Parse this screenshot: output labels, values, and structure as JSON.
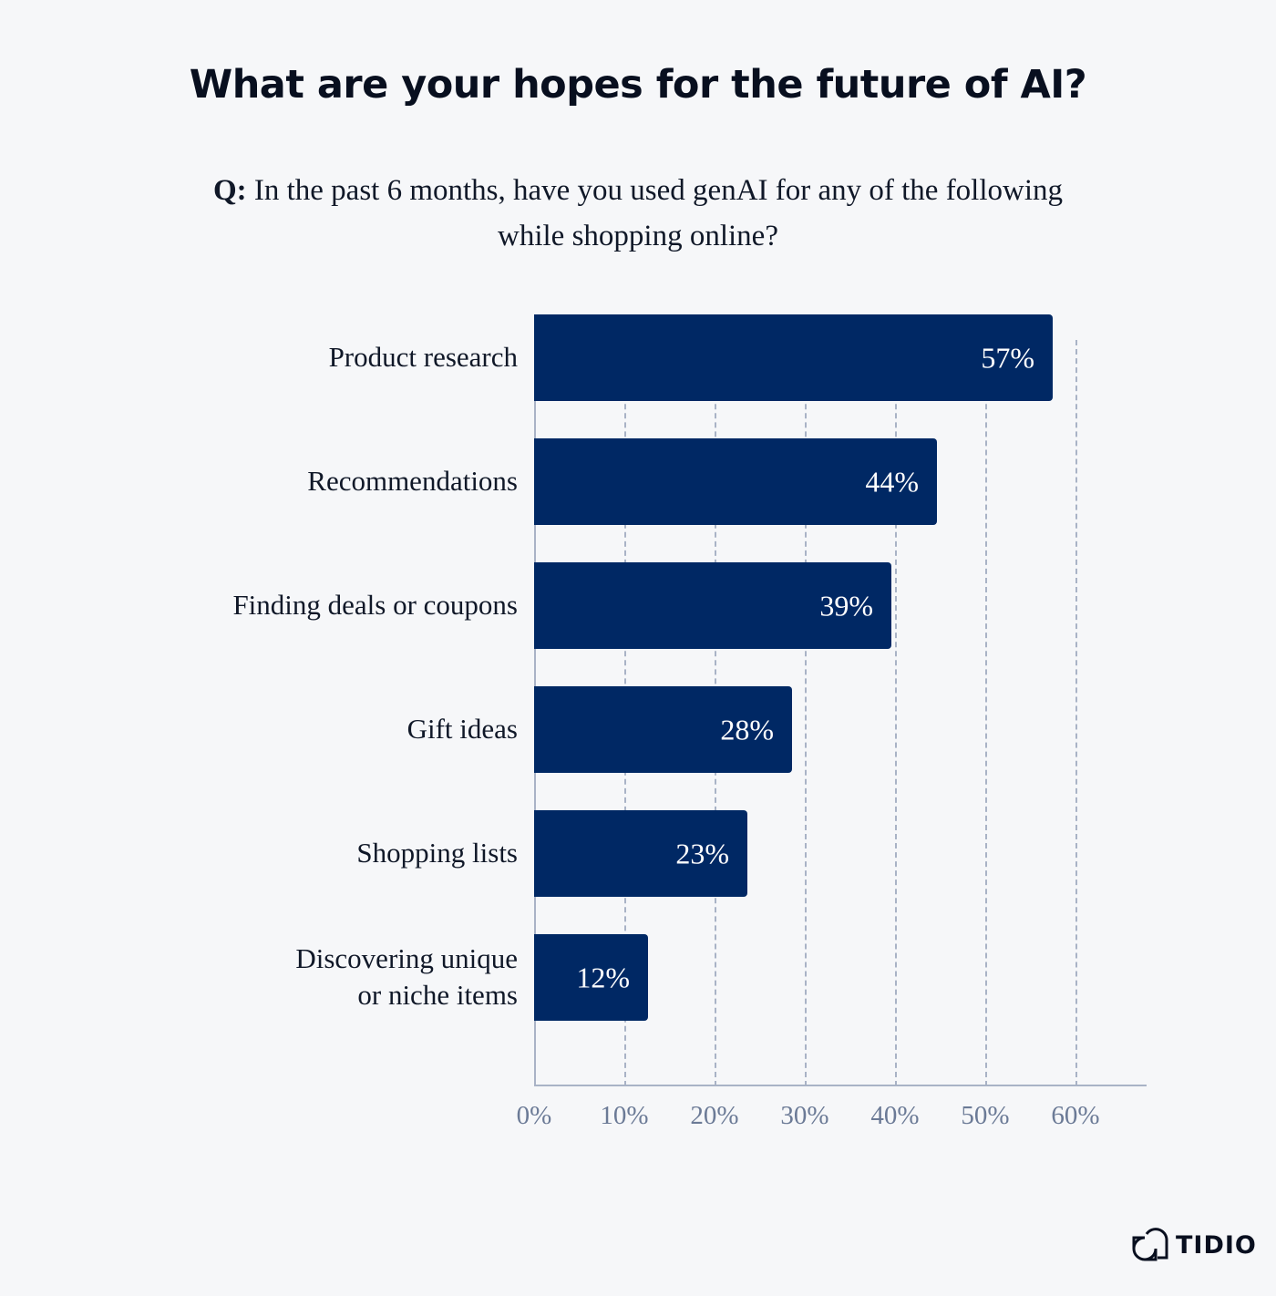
{
  "header": {
    "title": "What are your hopes for the future of AI?",
    "question_prefix": "Q:",
    "question_text": " In the past 6 months, have you used genAI for any of the following while shopping online?"
  },
  "brand": {
    "name": "TIDIO",
    "icon": "tidio-logo-icon"
  },
  "colors": {
    "bar": "#002864",
    "background": "#f6f7f9",
    "axis": "#a9b3c6",
    "tick_text": "#6b7a96"
  },
  "bars": [
    {
      "label": "Product research",
      "value": 57,
      "display": "57%"
    },
    {
      "label": "Recommendations",
      "value": 44,
      "display": "44%"
    },
    {
      "label": "Finding deals or coupons",
      "value": 39,
      "display": "39%"
    },
    {
      "label": "Gift ideas",
      "value": 28,
      "display": "28%"
    },
    {
      "label": "Shopping lists",
      "value": 23,
      "display": "23%"
    },
    {
      "label": "Discovering unique\nor niche items",
      "value": 12,
      "display": "12%"
    }
  ],
  "ticks": [
    "0%",
    "10%",
    "20%",
    "30%",
    "40%",
    "50%",
    "60%"
  ],
  "chart_data": {
    "type": "bar",
    "orientation": "horizontal",
    "title": "What are your hopes for the future of AI?",
    "subtitle": "Q: In the past 6 months, have you used genAI for any of the following while shopping online?",
    "categories": [
      "Product research",
      "Recommendations",
      "Finding deals or coupons",
      "Gift ideas",
      "Shopping lists",
      "Discovering unique or niche items"
    ],
    "values": [
      57,
      44,
      39,
      28,
      23,
      12
    ],
    "value_labels": [
      "57%",
      "44%",
      "39%",
      "28%",
      "23%",
      "12%"
    ],
    "xlabel": "",
    "ylabel": "",
    "xlim": [
      0,
      67
    ],
    "x_ticks": [
      "0%",
      "10%",
      "20%",
      "30%",
      "40%",
      "50%",
      "60%"
    ],
    "grid": "vertical dashed",
    "legend": "none"
  }
}
